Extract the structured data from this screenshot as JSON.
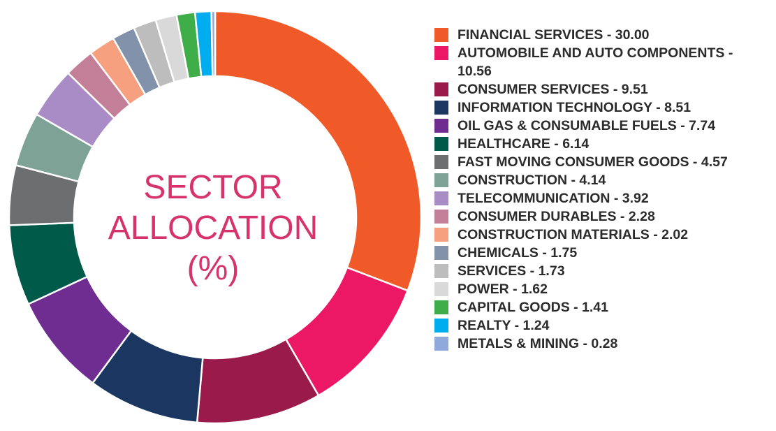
{
  "chart_data": {
    "type": "pie",
    "title_lines": [
      "SECTOR",
      "ALLOCATION",
      "(%)"
    ],
    "slices": [
      {
        "label": "FINANCIAL SERVICES - 30.00",
        "value": 30.0,
        "color": "#f05a28"
      },
      {
        "label": "AUTOMOBILE AND AUTO COMPONENTS - 10.56",
        "value": 10.56,
        "color": "#ed1865"
      },
      {
        "label": "CONSUMER SERVICES - 9.51",
        "value": 9.51,
        "color": "#9a1a4b"
      },
      {
        "label": "INFORMATION TECHNOLOGY - 8.51",
        "value": 8.51,
        "color": "#1b3660"
      },
      {
        "label": "OIL GAS & CONSUMABLE FUELS - 7.74",
        "value": 7.74,
        "color": "#6f2c91"
      },
      {
        "label": "HEALTHCARE - 6.14",
        "value": 6.14,
        "color": "#005a4a"
      },
      {
        "label": "FAST MOVING CONSUMER GOODS - 4.57",
        "value": 4.57,
        "color": "#6d6e70"
      },
      {
        "label": "CONSTRUCTION - 4.14",
        "value": 4.14,
        "color": "#7ea396"
      },
      {
        "label": "TELECOMMUNICATION - 3.92",
        "value": 3.92,
        "color": "#a98cc6"
      },
      {
        "label": "CONSUMER DURABLES - 2.28",
        "value": 2.28,
        "color": "#c37f98"
      },
      {
        "label": "CONSTRUCTION MATERIALS - 2.02",
        "value": 2.02,
        "color": "#f7a080"
      },
      {
        "label": "CHEMICALS - 1.75",
        "value": 1.75,
        "color": "#8292aa"
      },
      {
        "label": "SERVICES - 1.73",
        "value": 1.73,
        "color": "#bdbdbd"
      },
      {
        "label": "POWER - 1.62",
        "value": 1.62,
        "color": "#d9d9d9"
      },
      {
        "label": "CAPITAL GOODS  - 1.41",
        "value": 1.41,
        "color": "#3fae49"
      },
      {
        "label": "REALTY  - 1.24",
        "value": 1.24,
        "color": "#00aeef"
      },
      {
        "label": "METALS & MINING  - 0.28",
        "value": 0.28,
        "color": "#8fa9dc"
      }
    ]
  }
}
